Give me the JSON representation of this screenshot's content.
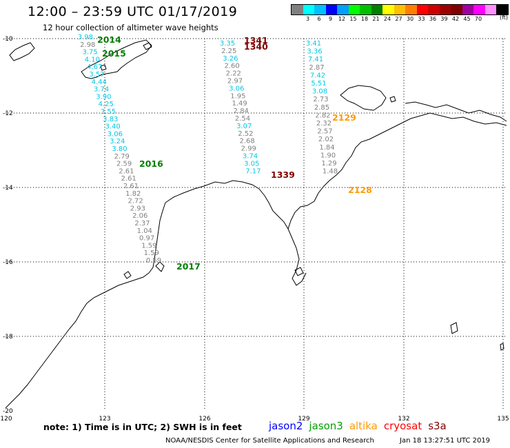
{
  "header": {
    "title": "12:00 – 23:59 UTC 01/17/2019",
    "subtitle": "12 hour collection of altimeter wave heights"
  },
  "legend": {
    "colors": [
      "#808080",
      "#00ffff",
      "#00c0ff",
      "#0000ff",
      "#00a0ff",
      "#00ff00",
      "#00c000",
      "#008000",
      "#ffff00",
      "#ffc000",
      "#ff8000",
      "#ff0000",
      "#d00000",
      "#a00000",
      "#800000",
      "#a000a0",
      "#ff00ff",
      "#ff90ff",
      "#000000"
    ],
    "ticks": [
      "3",
      "6",
      "9",
      "12",
      "15",
      "18",
      "21",
      "24",
      "27",
      "30",
      "33",
      "36",
      "39",
      "42",
      "45",
      "70"
    ],
    "unit": "(ft)"
  },
  "axes": {
    "lat_labels": [
      "-10",
      "-12",
      "-14",
      "-16",
      "-18",
      "-20"
    ],
    "lon_labels": [
      "120",
      "123",
      "126",
      "129",
      "132",
      "135"
    ]
  },
  "tracks": {
    "colors": {
      "gray": "#808080",
      "cyan": "#00c8e6"
    },
    "west": {
      "readings": [
        {
          "v": "3.98",
          "c": "cyan"
        },
        {
          "v": "2.98",
          "c": "gray"
        },
        {
          "v": "3.75",
          "c": "cyan"
        },
        {
          "v": "4.10",
          "c": "cyan"
        },
        {
          "v": "4.67",
          "c": "cyan"
        },
        {
          "v": "3.57",
          "c": "cyan"
        },
        {
          "v": "4.44",
          "c": "cyan"
        },
        {
          "v": "3.74",
          "c": "cyan"
        },
        {
          "v": "3.90",
          "c": "cyan"
        },
        {
          "v": "4.25",
          "c": "cyan"
        },
        {
          "v": "3.55",
          "c": "cyan"
        },
        {
          "v": "3.83",
          "c": "cyan"
        },
        {
          "v": "3.40",
          "c": "cyan"
        },
        {
          "v": "3.06",
          "c": "cyan"
        },
        {
          "v": "3.24",
          "c": "cyan"
        },
        {
          "v": "3.80",
          "c": "cyan"
        },
        {
          "v": "2.79",
          "c": "gray"
        },
        {
          "v": "2.59",
          "c": "gray"
        },
        {
          "v": "2.61",
          "c": "gray"
        },
        {
          "v": "2.61",
          "c": "gray"
        },
        {
          "v": "2.61",
          "c": "gray"
        },
        {
          "v": "1.82",
          "c": "gray"
        },
        {
          "v": "2.72",
          "c": "gray"
        },
        {
          "v": "2.93",
          "c": "gray"
        },
        {
          "v": "2.06",
          "c": "gray"
        },
        {
          "v": "2.37",
          "c": "gray"
        },
        {
          "v": "1.04",
          "c": "gray"
        },
        {
          "v": "0.97",
          "c": "gray"
        },
        {
          "v": "1.59",
          "c": "gray"
        },
        {
          "v": "1.59",
          "c": "gray"
        },
        {
          "v": "0.59",
          "c": "gray"
        }
      ]
    },
    "middle": {
      "readings": [
        {
          "v": "3.35",
          "c": "cyan"
        },
        {
          "v": "2.25",
          "c": "gray"
        },
        {
          "v": "3.26",
          "c": "cyan"
        },
        {
          "v": "2.60",
          "c": "gray"
        },
        {
          "v": "2.22",
          "c": "gray"
        },
        {
          "v": "2.97",
          "c": "gray"
        },
        {
          "v": "3.06",
          "c": "cyan"
        },
        {
          "v": "1.95",
          "c": "gray"
        },
        {
          "v": "1.49",
          "c": "gray"
        },
        {
          "v": "2.84",
          "c": "gray"
        },
        {
          "v": "2.54",
          "c": "gray"
        },
        {
          "v": "3.07",
          "c": "cyan"
        },
        {
          "v": "2.52",
          "c": "gray"
        },
        {
          "v": "2.68",
          "c": "gray"
        },
        {
          "v": "2.99",
          "c": "gray"
        },
        {
          "v": "3.74",
          "c": "cyan"
        },
        {
          "v": "3.05",
          "c": "cyan"
        },
        {
          "v": "7.17",
          "c": "cyan"
        }
      ]
    },
    "east": {
      "readings": [
        {
          "v": "3.41",
          "c": "cyan"
        },
        {
          "v": "3.36",
          "c": "cyan"
        },
        {
          "v": "7.41",
          "c": "cyan"
        },
        {
          "v": "2.87",
          "c": "gray"
        },
        {
          "v": "7.42",
          "c": "cyan"
        },
        {
          "v": "5.51",
          "c": "cyan"
        },
        {
          "v": "3.08",
          "c": "cyan"
        },
        {
          "v": "2.73",
          "c": "gray"
        },
        {
          "v": "2.85",
          "c": "gray"
        },
        {
          "v": "2.82",
          "c": "gray"
        },
        {
          "v": "2.32",
          "c": "gray"
        },
        {
          "v": "2.57",
          "c": "gray"
        },
        {
          "v": "2.02",
          "c": "gray"
        },
        {
          "v": "1.84",
          "c": "gray"
        },
        {
          "v": "1.90",
          "c": "gray"
        },
        {
          "v": "1.29",
          "c": "gray"
        },
        {
          "v": "1.48",
          "c": "gray"
        }
      ]
    }
  },
  "time_labels": [
    {
      "t": "2014",
      "c": "#008000"
    },
    {
      "t": "2015",
      "c": "#008000"
    },
    {
      "t": "2016",
      "c": "#008000"
    },
    {
      "t": "2017",
      "c": "#008000"
    },
    {
      "t": "1341",
      "c": "#800000"
    },
    {
      "t": "1340",
      "c": "#800000"
    },
    {
      "t": "1339",
      "c": "#800000"
    },
    {
      "t": "2129",
      "c": "#ff9900"
    },
    {
      "t": "2128",
      "c": "#ff9900"
    }
  ],
  "footer": {
    "note": "note: 1) Time is in UTC; 2) SWH is in feet",
    "satellites": [
      {
        "name": "jason2",
        "color": "#0000ff"
      },
      {
        "name": "jason3",
        "color": "#00a000"
      },
      {
        "name": "altika",
        "color": "#ff9900"
      },
      {
        "name": "cryosat",
        "color": "#ff0000"
      },
      {
        "name": "s3a",
        "color": "#800000"
      }
    ],
    "credit": "NOAA/NESDIS Center for Satellite Applications and Research",
    "timestamp": "Jan 18 13:27:51 UTC 2019"
  }
}
